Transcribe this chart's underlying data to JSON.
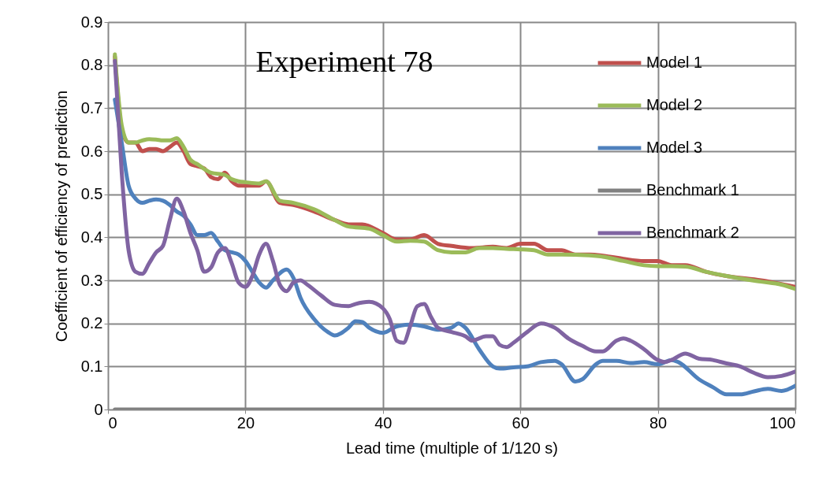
{
  "chart_data": {
    "type": "line",
    "title": "Experiment 78",
    "xlabel": "Lead time (multiple of 1/120 s)",
    "ylabel": "Coefficient of efficiency of prediction",
    "xlim": [
      0,
      100
    ],
    "xticks": [
      0,
      20,
      40,
      60,
      80,
      100
    ],
    "ylim": [
      0,
      0.9
    ],
    "yticks": [
      0,
      0.1,
      0.2,
      0.3,
      0.4,
      0.5,
      0.6,
      0.7,
      0.8,
      0.9
    ],
    "grid": true,
    "legend": "top right",
    "marker": "none",
    "line_style": "solid",
    "series": [
      {
        "name": "Model 1",
        "color": "#c0504d",
        "x": [
          1,
          2,
          3,
          4,
          5,
          6,
          7,
          8,
          9,
          10,
          11,
          12,
          13,
          14,
          15,
          16,
          17,
          18,
          19,
          20,
          22,
          23,
          25,
          27,
          30,
          33,
          35,
          37,
          40,
          42,
          44,
          46,
          48,
          50,
          53,
          56,
          58,
          60,
          62,
          64,
          66,
          68,
          70,
          73,
          75,
          78,
          80,
          82,
          84,
          87,
          90,
          95,
          100
        ],
        "values": [
          0.82,
          0.65,
          0.62,
          0.62,
          0.6,
          0.605,
          0.605,
          0.6,
          0.61,
          0.62,
          0.6,
          0.57,
          0.565,
          0.56,
          0.54,
          0.535,
          0.55,
          0.53,
          0.52,
          0.52,
          0.52,
          0.53,
          0.48,
          0.475,
          0.46,
          0.44,
          0.43,
          0.43,
          0.41,
          0.395,
          0.395,
          0.405,
          0.385,
          0.38,
          0.375,
          0.378,
          0.375,
          0.385,
          0.385,
          0.37,
          0.37,
          0.36,
          0.36,
          0.355,
          0.35,
          0.345,
          0.345,
          0.335,
          0.335,
          0.32,
          0.31,
          0.3,
          0.285
        ]
      },
      {
        "name": "Model 2",
        "color": "#9bbb59",
        "x": [
          1,
          2,
          3,
          4,
          5,
          6,
          7,
          8,
          9,
          10,
          11,
          12,
          13,
          15,
          17,
          18,
          19,
          20,
          22,
          23,
          25,
          27,
          30,
          33,
          35,
          38,
          40,
          42,
          44,
          46,
          48,
          50,
          52,
          54,
          56,
          58,
          60,
          62,
          64,
          66,
          70,
          72,
          75,
          78,
          80,
          82,
          84,
          87,
          90,
          95,
          98,
          100
        ],
        "values": [
          0.825,
          0.66,
          0.62,
          0.62,
          0.625,
          0.628,
          0.627,
          0.625,
          0.625,
          0.63,
          0.61,
          0.58,
          0.57,
          0.55,
          0.545,
          0.535,
          0.53,
          0.528,
          0.525,
          0.53,
          0.485,
          0.48,
          0.465,
          0.44,
          0.425,
          0.42,
          0.405,
          0.39,
          0.392,
          0.39,
          0.37,
          0.365,
          0.365,
          0.375,
          0.375,
          0.373,
          0.372,
          0.37,
          0.36,
          0.36,
          0.358,
          0.355,
          0.345,
          0.335,
          0.333,
          0.333,
          0.332,
          0.32,
          0.31,
          0.297,
          0.29,
          0.28
        ]
      },
      {
        "name": "Model 3",
        "color": "#4f81bd",
        "x": [
          1,
          2,
          3,
          4,
          5,
          6,
          7,
          8,
          9,
          10,
          11,
          12,
          13,
          14,
          15,
          16,
          17,
          18,
          19,
          20,
          21,
          22,
          23,
          24,
          26,
          27,
          28,
          30,
          32,
          33,
          35,
          36,
          37,
          38,
          40,
          42,
          44,
          46,
          48,
          50,
          51,
          52,
          54,
          56,
          57,
          59,
          61,
          63,
          65,
          66,
          68,
          69,
          71,
          72,
          74,
          76,
          78,
          80,
          82,
          83,
          86,
          88,
          90,
          92,
          94,
          96,
          98,
          100
        ],
        "values": [
          0.72,
          0.62,
          0.52,
          0.49,
          0.48,
          0.485,
          0.488,
          0.485,
          0.475,
          0.46,
          0.45,
          0.43,
          0.405,
          0.405,
          0.41,
          0.39,
          0.37,
          0.365,
          0.36,
          0.345,
          0.32,
          0.295,
          0.283,
          0.3,
          0.325,
          0.305,
          0.26,
          0.21,
          0.18,
          0.172,
          0.19,
          0.205,
          0.203,
          0.19,
          0.178,
          0.193,
          0.197,
          0.193,
          0.185,
          0.19,
          0.2,
          0.19,
          0.14,
          0.1,
          0.095,
          0.098,
          0.1,
          0.11,
          0.113,
          0.105,
          0.065,
          0.07,
          0.105,
          0.113,
          0.113,
          0.108,
          0.11,
          0.105,
          0.115,
          0.11,
          0.07,
          0.052,
          0.035,
          0.035,
          0.042,
          0.048,
          0.043,
          0.055
        ]
      },
      {
        "name": "Benchmark 1",
        "color": "#808080",
        "x": [
          1,
          100
        ],
        "values": [
          0,
          0
        ]
      },
      {
        "name": "Benchmark 2",
        "color": "#8064a2",
        "x": [
          1,
          2,
          3,
          4,
          5,
          6,
          7,
          8,
          9,
          10,
          11,
          12,
          13,
          14,
          15,
          16,
          17,
          18,
          19,
          20,
          21,
          22,
          23,
          24,
          25,
          26,
          27,
          28,
          29,
          31,
          33,
          35,
          36,
          38,
          40,
          41,
          42,
          43,
          44,
          45,
          46,
          47,
          48,
          50,
          52,
          53,
          55,
          56,
          57,
          58,
          59,
          61,
          63,
          65,
          67,
          69,
          71,
          72,
          74,
          75,
          76,
          78,
          80,
          81,
          82,
          84,
          86,
          88,
          90,
          92,
          94,
          96,
          98,
          100
        ],
        "values": [
          0.81,
          0.55,
          0.37,
          0.32,
          0.315,
          0.34,
          0.365,
          0.38,
          0.44,
          0.49,
          0.46,
          0.41,
          0.37,
          0.32,
          0.33,
          0.365,
          0.375,
          0.34,
          0.295,
          0.285,
          0.31,
          0.36,
          0.385,
          0.345,
          0.29,
          0.275,
          0.295,
          0.3,
          0.29,
          0.265,
          0.243,
          0.24,
          0.245,
          0.25,
          0.235,
          0.21,
          0.16,
          0.155,
          0.195,
          0.24,
          0.245,
          0.215,
          0.19,
          0.18,
          0.17,
          0.16,
          0.17,
          0.17,
          0.15,
          0.145,
          0.155,
          0.18,
          0.2,
          0.19,
          0.165,
          0.148,
          0.135,
          0.135,
          0.16,
          0.165,
          0.16,
          0.14,
          0.115,
          0.11,
          0.115,
          0.13,
          0.118,
          0.115,
          0.107,
          0.1,
          0.085,
          0.075,
          0.078,
          0.088
        ]
      }
    ]
  }
}
